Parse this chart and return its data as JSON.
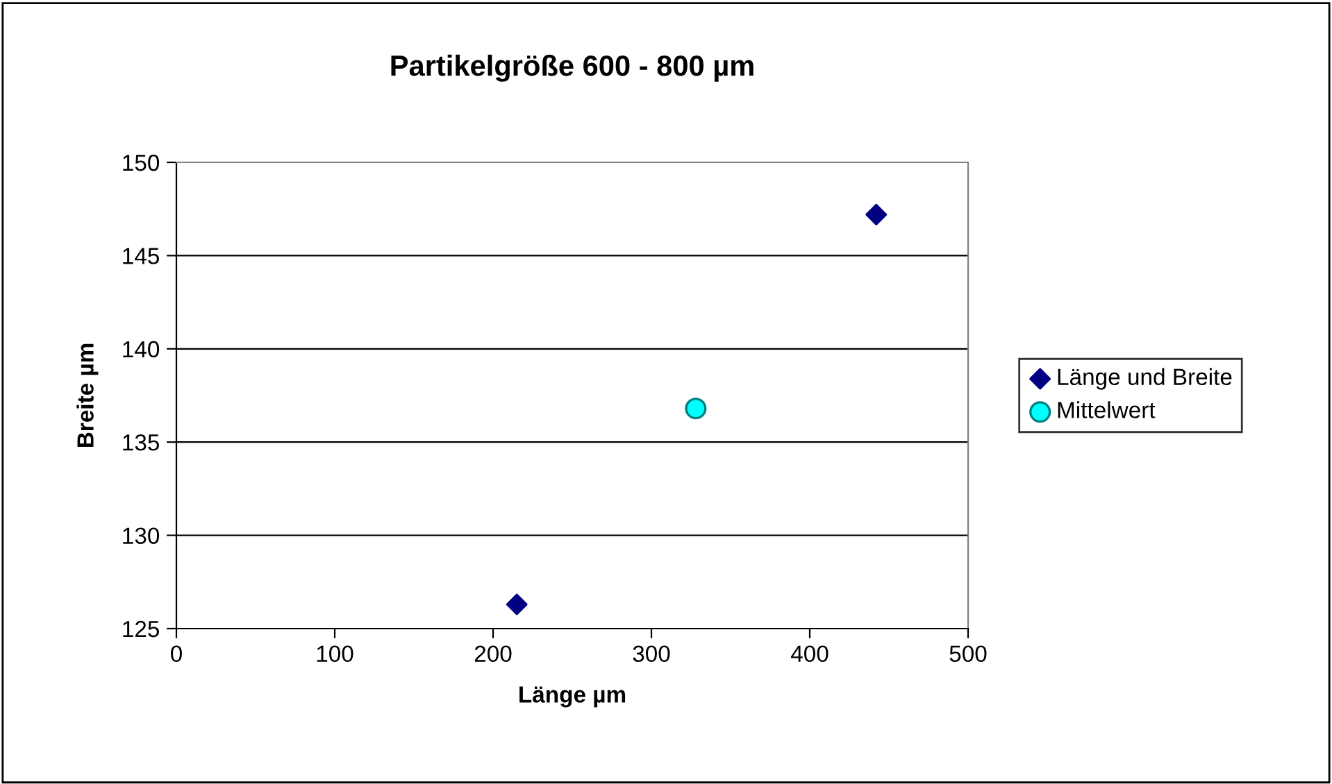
{
  "chart_data": {
    "type": "scatter",
    "title": "Partikelgröße 600 - 800 µm",
    "xlabel": "Länge µm",
    "ylabel": "Breite µm",
    "series": [
      {
        "name": "Länge und Breite",
        "color": "#000080",
        "marker": "diamond",
        "x": [
          215,
          442
        ],
        "values": [
          126.3,
          147.2
        ]
      },
      {
        "name": "Mittelwert",
        "color": "#00ffff",
        "marker": "circle",
        "x": [
          328
        ],
        "values": [
          136.8
        ]
      }
    ],
    "xlim": [
      0,
      500
    ],
    "xticks": [
      0,
      100,
      200,
      300,
      400,
      500
    ],
    "ylim": [
      125,
      150
    ],
    "yticks": [
      125,
      130,
      135,
      140,
      145,
      150
    ],
    "grid": "y",
    "legend": "right"
  }
}
